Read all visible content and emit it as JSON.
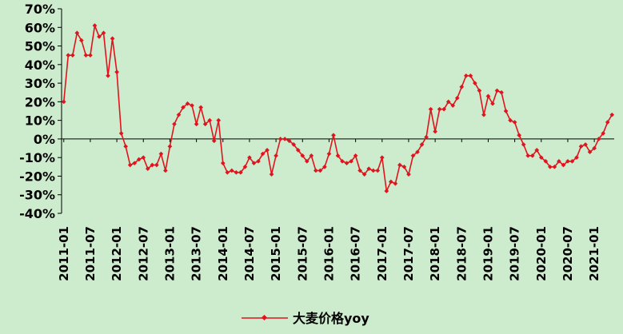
{
  "chart_data": {
    "type": "line",
    "title": "",
    "xlabel": "",
    "ylabel": "",
    "ylim": [
      -40,
      70
    ],
    "y_ticks": [
      "70%",
      "60%",
      "50%",
      "40%",
      "30%",
      "20%",
      "10%",
      "0%",
      "-10%",
      "-20%",
      "-30%",
      "-40%"
    ],
    "y_tick_values": [
      70,
      60,
      50,
      40,
      30,
      20,
      10,
      0,
      -10,
      -20,
      -30,
      -40
    ],
    "x_ticks": [
      "2011-01",
      "2011-07",
      "2012-01",
      "2012-07",
      "2013-01",
      "2013-07",
      "2014-01",
      "2014-07",
      "2015-01",
      "2015-07",
      "2016-01",
      "2016-07",
      "2017-01",
      "2017-07",
      "2018-01",
      "2018-07",
      "2019-01",
      "2019-07",
      "2020-01",
      "2020-07",
      "2021-01"
    ],
    "x_tick_month_index": [
      0,
      6,
      12,
      18,
      24,
      30,
      36,
      42,
      48,
      54,
      60,
      66,
      72,
      78,
      84,
      90,
      96,
      102,
      108,
      114,
      120
    ],
    "grid": false,
    "legend_position": "bottom",
    "colors": {
      "series": "#e0141e",
      "axis": "#000000",
      "background": "#cdeccd"
    },
    "series": [
      {
        "name": "大麦价格yoy",
        "start": "2011-01",
        "frequency": "monthly",
        "values": [
          20,
          45,
          45,
          57,
          53,
          45,
          45,
          61,
          55,
          57,
          34,
          54,
          36,
          3,
          -4,
          -14,
          -13,
          -11,
          -10,
          -16,
          -14,
          -14,
          -8,
          -17,
          -4,
          8,
          13,
          17,
          19,
          18,
          8,
          17,
          8,
          10,
          -1,
          10,
          -13,
          -18,
          -17,
          -18,
          -18,
          -15,
          -10,
          -13,
          -12,
          -8,
          -6,
          -19,
          -9,
          0,
          0,
          -1,
          -3,
          -6,
          -9,
          -12,
          -9,
          -17,
          -17,
          -15,
          -8,
          2,
          -9,
          -12,
          -13,
          -12,
          -9,
          -17,
          -19,
          -16,
          -17,
          -17,
          -10,
          -28,
          -23,
          -24,
          -14,
          -15,
          -19,
          -9,
          -7,
          -3,
          1,
          16,
          4,
          16,
          16,
          20,
          18,
          22,
          28,
          34,
          34,
          30,
          26,
          13,
          23,
          19,
          26,
          25,
          15,
          10,
          9,
          2,
          -3,
          -9,
          -9,
          -6,
          -10,
          -12,
          -15,
          -15,
          -12,
          -14,
          -12,
          -12,
          -10,
          -4,
          -3,
          -7,
          -5,
          0,
          3,
          9,
          13
        ]
      }
    ]
  }
}
